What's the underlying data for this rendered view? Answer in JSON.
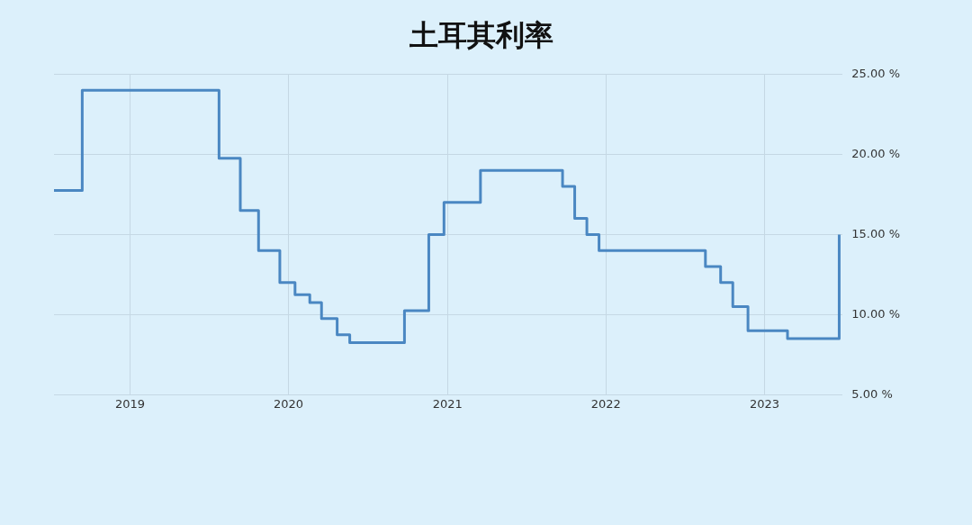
{
  "chart_data": {
    "type": "step",
    "title": "土耳其利率",
    "x": [
      "2018-07-10",
      "2018-09-13",
      "2019-07-25",
      "2019-09-12",
      "2019-10-24",
      "2019-12-12",
      "2020-01-16",
      "2020-02-19",
      "2020-03-17",
      "2020-04-22",
      "2020-05-21",
      "2020-09-24",
      "2020-11-19",
      "2020-12-24",
      "2021-03-18",
      "2021-09-23",
      "2021-10-21",
      "2021-11-18",
      "2021-12-16",
      "2022-08-18",
      "2022-09-22",
      "2022-10-20",
      "2022-11-24",
      "2023-02-23",
      "2023-06-22"
    ],
    "series": [
      {
        "color": "#4a87c2",
        "values": [
          17.75,
          24,
          19.75,
          16.5,
          14,
          12,
          11.25,
          10.75,
          9.75,
          8.75,
          8.25,
          10.25,
          15,
          17,
          19,
          18,
          16,
          15,
          14,
          13,
          12,
          10.5,
          9,
          8.5,
          15
        ]
      }
    ],
    "xlim": [
      "2018-07-10",
      "2023-06-30"
    ],
    "xticks": [
      {
        "value": "2019-01-01",
        "label": "2019"
      },
      {
        "value": "2020-01-01",
        "label": "2020"
      },
      {
        "value": "2021-01-01",
        "label": "2021"
      },
      {
        "value": "2022-01-01",
        "label": "2022"
      },
      {
        "value": "2023-01-01",
        "label": "2023"
      }
    ],
    "ylim": [
      5,
      25
    ],
    "yticks": [
      {
        "value": 5,
        "label": "5.00 %"
      },
      {
        "value": 10,
        "label": "10.00 %"
      },
      {
        "value": 15,
        "label": "15.00 %"
      },
      {
        "value": 20,
        "label": "20.00 %"
      },
      {
        "value": 25,
        "label": "25.00 %"
      }
    ],
    "grid": true,
    "legend": false,
    "marker": "none",
    "line_style": "solid"
  }
}
